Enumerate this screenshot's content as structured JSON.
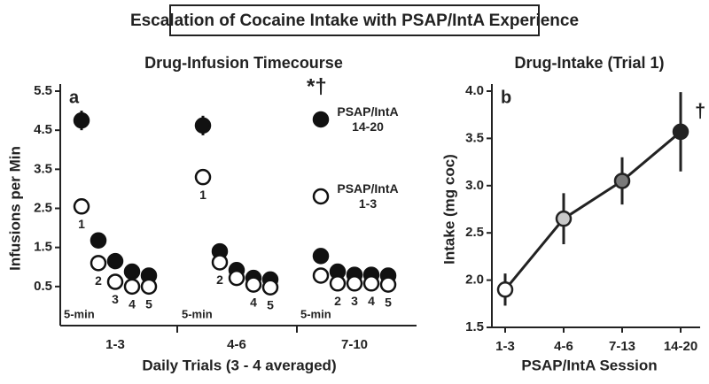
{
  "page_title": "Escalation of Cocaine Intake with PSAP/IntA Experience",
  "chart_data": [
    {
      "type": "scatter",
      "title": "Drug-Infusion Timecourse",
      "ylabel": "Infusions per Min",
      "xlabel": "Daily Trials (3 - 4 averaged)",
      "panel_label": "a",
      "bin_label": "5-min",
      "annotation": "*†",
      "categories": [
        "1-3",
        "4-6",
        "7-10"
      ],
      "ylim": [
        -0.5,
        5.5
      ],
      "yticks": [
        0.5,
        1.5,
        2.5,
        3.5,
        4.5,
        5.5
      ],
      "series": [
        {
          "name": "PSAP/IntA 14-20",
          "color": "#111111",
          "fill": "#111111",
          "values": [
            [
              4.75,
              1.68,
              1.15,
              0.88,
              0.78
            ],
            [
              4.62,
              1.4,
              0.92,
              0.72,
              0.68
            ],
            [
              1.28,
              0.88,
              0.8,
              0.8,
              0.78
            ]
          ],
          "errors": [
            [
              0.25,
              0.1,
              0.08,
              0.08,
              0.06
            ],
            [
              0.25,
              0.1,
              0.08,
              0.06,
              0.06
            ],
            [
              0.1,
              0.06,
              0.06,
              0.06,
              0.06
            ]
          ]
        },
        {
          "name": "PSAP/IntA 1-3",
          "color": "#111111",
          "fill": "#ffffff",
          "values": [
            [
              2.55,
              1.1,
              0.62,
              0.5,
              0.5
            ],
            [
              3.3,
              1.12,
              0.72,
              0.55,
              0.48
            ],
            [
              0.78,
              0.58,
              0.58,
              0.58,
              0.55
            ]
          ],
          "errors": [
            [
              0.1,
              0.08,
              0.06,
              0.05,
              0.05
            ],
            [
              0.15,
              0.08,
              0.06,
              0.05,
              0.05
            ],
            [
              0.06,
              0.05,
              0.05,
              0.05,
              0.05
            ]
          ]
        }
      ],
      "point_labels": [
        [
          "1",
          "2",
          "3",
          "4",
          "5"
        ],
        [
          "1",
          "2",
          null,
          "4",
          "5"
        ],
        [
          null,
          "2",
          "3",
          "4",
          "5"
        ]
      ]
    },
    {
      "type": "line",
      "title": "Drug-Intake (Trial 1)",
      "ylabel": "Intake (mg coc)",
      "xlabel": "PSAP/IntA Session",
      "panel_label": "b",
      "annotation": "†",
      "categories": [
        "1-3",
        "4-6",
        "7-13",
        "14-20"
      ],
      "values": [
        1.9,
        2.65,
        3.05,
        3.57
      ],
      "errors": [
        0.17,
        0.27,
        0.25,
        0.42
      ],
      "colors": [
        "#ffffff",
        "#c8c8c8",
        "#7a7a7a",
        "#222222"
      ],
      "ylim": [
        1.5,
        4.0
      ],
      "yticks": [
        1.5,
        {
          "value": 2.0,
          "label": "2.0"
        },
        2.5,
        {
          "value": 3.0,
          "label": "3.0"
        },
        3.5,
        {
          "value": 4.0,
          "label": "4.0"
        }
      ]
    }
  ]
}
